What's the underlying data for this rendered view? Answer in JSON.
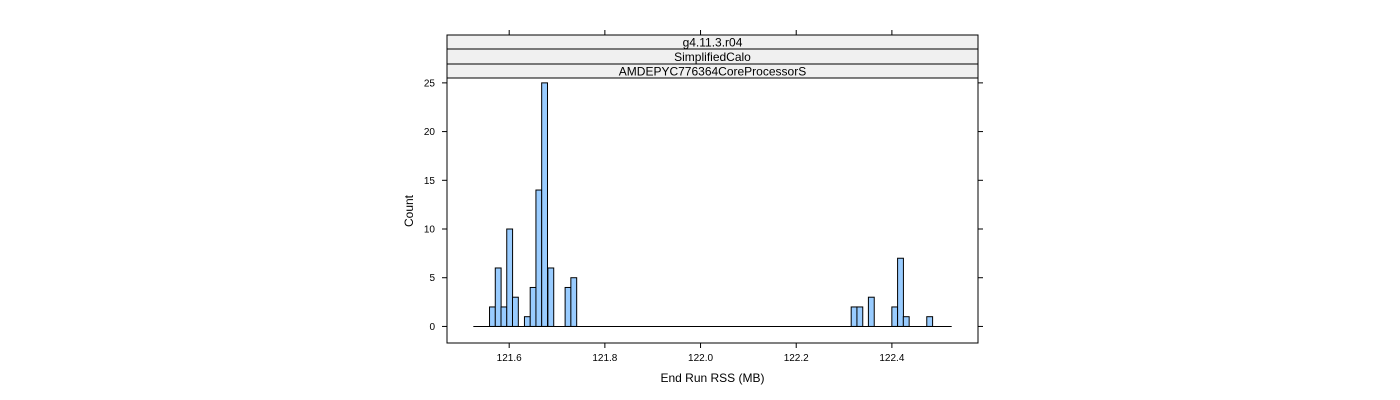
{
  "chart_data": {
    "type": "bar",
    "strips": [
      "g4.11.3.r04",
      "SimplifiedCalo",
      "AMDEPYC776364CoreProcessorS"
    ],
    "xlabel": "End Run RSS (MB)",
    "ylabel": "Count",
    "xlim": [
      121.47,
      122.58
    ],
    "ylim": [
      -1.7,
      25.5
    ],
    "x_ticks": [
      121.6,
      121.8,
      122.0,
      122.2,
      122.4
    ],
    "x_tick_labels": [
      "121.6",
      "121.8",
      "122.0",
      "122.2",
      "122.4"
    ],
    "y_ticks": [
      0,
      5,
      10,
      15,
      20,
      25
    ],
    "y_tick_labels": [
      "0",
      "5",
      "10",
      "15",
      "20",
      "25"
    ],
    "baseline_range": [
      121.525,
      122.525
    ],
    "bin_width": 0.0122,
    "bars": [
      {
        "x": 121.565,
        "count": 2
      },
      {
        "x": 121.577,
        "count": 6
      },
      {
        "x": 121.589,
        "count": 2
      },
      {
        "x": 121.601,
        "count": 10
      },
      {
        "x": 121.613,
        "count": 3
      },
      {
        "x": 121.638,
        "count": 1
      },
      {
        "x": 121.65,
        "count": 4
      },
      {
        "x": 121.662,
        "count": 14
      },
      {
        "x": 121.674,
        "count": 25
      },
      {
        "x": 121.687,
        "count": 6
      },
      {
        "x": 121.723,
        "count": 4
      },
      {
        "x": 121.735,
        "count": 5
      },
      {
        "x": 122.321,
        "count": 2
      },
      {
        "x": 122.333,
        "count": 2
      },
      {
        "x": 122.357,
        "count": 3
      },
      {
        "x": 122.406,
        "count": 2
      },
      {
        "x": 122.418,
        "count": 7
      },
      {
        "x": 122.43,
        "count": 1
      },
      {
        "x": 122.479,
        "count": 1
      }
    ],
    "bar_fill": "#99ccff",
    "bar_stroke": "#000000",
    "strip_fill": "#f0f0f0",
    "grid": false
  }
}
